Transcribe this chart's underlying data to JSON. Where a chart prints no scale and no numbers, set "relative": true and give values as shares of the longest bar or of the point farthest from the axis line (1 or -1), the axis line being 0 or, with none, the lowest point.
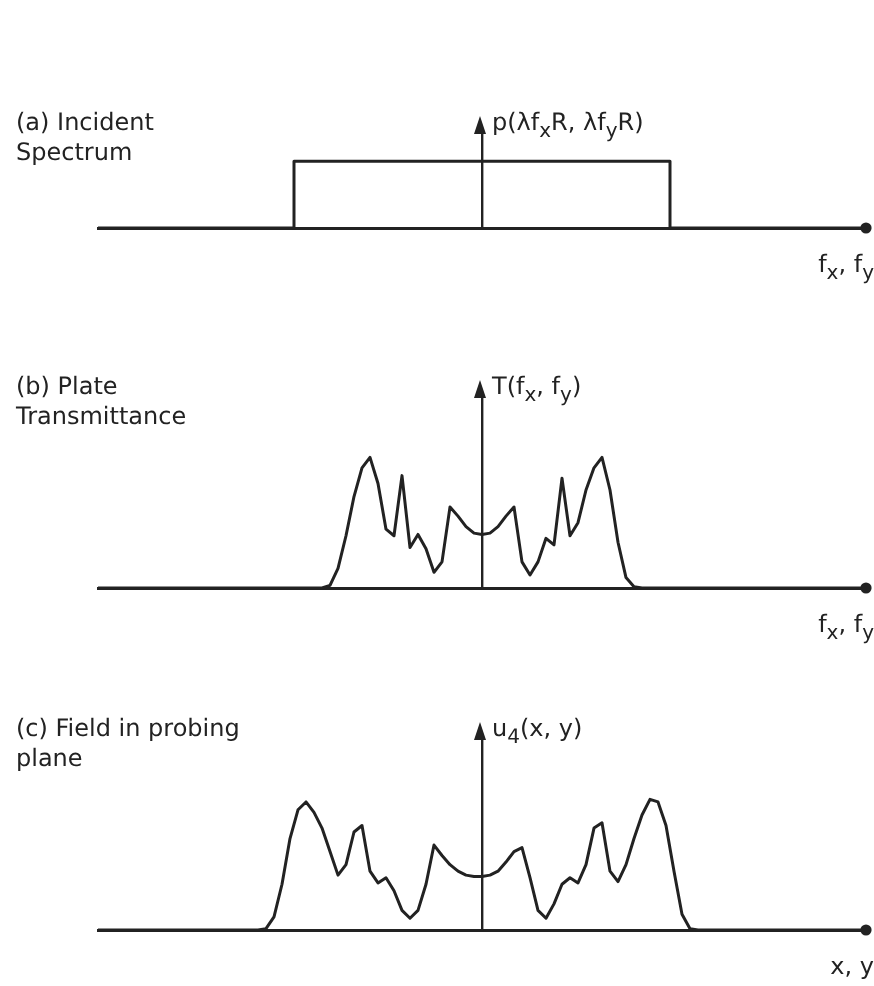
{
  "chart_data": [
    {
      "type": "step",
      "title": "(a) Incident Spectrum",
      "ylabel": "p(λf$_{x}$R, λf$_{y}$R)",
      "xlabel": "f$_{x}$, f$_{y}$",
      "relative": true,
      "color": "#222222",
      "categories": [
        null,
        null,
        null,
        null,
        null,
        null,
        null,
        null,
        null,
        null,
        null,
        null,
        null,
        null,
        null,
        null,
        null,
        null,
        null,
        null,
        null,
        null,
        null,
        null,
        null,
        null,
        null,
        null,
        null,
        null,
        null,
        null,
        null,
        null,
        null,
        null,
        null,
        null,
        null,
        null,
        null,
        null,
        null,
        null,
        null,
        null,
        null,
        null,
        null,
        null,
        null,
        null,
        null,
        null,
        null,
        null,
        null,
        null,
        null,
        null,
        null,
        null,
        null,
        null,
        null,
        null,
        null,
        null,
        null,
        null,
        null,
        null,
        null,
        null,
        null,
        null,
        null,
        null,
        null,
        null,
        null,
        null,
        null,
        null,
        null,
        null,
        null,
        null,
        null,
        null,
        null,
        null,
        null,
        null,
        null,
        null,
        null
      ],
      "values": [
        0,
        0,
        0,
        0,
        0,
        0,
        0,
        0,
        0,
        0,
        0,
        0,
        0,
        0,
        0,
        0,
        0,
        0,
        0,
        0,
        0,
        0,
        0,
        0,
        0,
        1,
        1,
        1,
        1,
        1,
        1,
        1,
        1,
        1,
        1,
        1,
        1,
        1,
        1,
        1,
        1,
        1,
        1,
        1,
        1,
        1,
        1,
        1,
        1,
        1,
        1,
        1,
        1,
        1,
        1,
        1,
        1,
        1,
        1,
        1,
        1,
        1,
        1,
        1,
        1,
        1,
        1,
        1,
        1,
        1,
        1,
        1,
        0,
        0,
        0,
        0,
        0,
        0,
        0,
        0,
        0,
        0,
        0,
        0,
        0,
        0,
        0,
        0,
        0,
        0,
        0,
        0,
        0,
        0,
        0,
        0,
        0
      ]
    },
    {
      "type": "line",
      "title": "(b) Plate Transmittance",
      "ylabel": "T(f$_{x}$, f$_{y}$)",
      "xlabel": "f$_{x}$, f$_{y}$",
      "relative": true,
      "color": "#222222",
      "categories": [
        null,
        null,
        null,
        null,
        null,
        null,
        null,
        null,
        null,
        null,
        null,
        null,
        null,
        null,
        null,
        null,
        null,
        null,
        null,
        null,
        null,
        null,
        null,
        null,
        null,
        null,
        null,
        null,
        null,
        null,
        null,
        null,
        null,
        null,
        null,
        null,
        null,
        null,
        null,
        null,
        null,
        null,
        null,
        null,
        null,
        null,
        null,
        null,
        null,
        null,
        null,
        null,
        null,
        null,
        null,
        null,
        null,
        null,
        null,
        null,
        null,
        null,
        null,
        null,
        null,
        null,
        null,
        null,
        null,
        null,
        null,
        null,
        null,
        null,
        null,
        null,
        null,
        null,
        null,
        null,
        null,
        null,
        null,
        null,
        null,
        null,
        null,
        null,
        null,
        null,
        null,
        null,
        null,
        null,
        null,
        null,
        null
      ],
      "values": [
        0,
        0,
        0,
        0,
        0,
        0,
        0,
        0,
        0,
        0,
        0,
        0,
        0,
        0,
        0,
        0,
        0,
        0,
        0,
        0,
        0,
        0,
        0,
        0,
        0,
        0,
        0,
        0,
        0,
        0.02,
        0.15,
        0.4,
        0.7,
        0.92,
        1,
        0.8,
        0.45,
        0.4,
        0.86,
        0.31,
        0.41,
        0.3,
        0.12,
        0.2,
        0.62,
        0.55,
        0.47,
        0.42,
        0.41,
        0.42,
        0.47,
        0.55,
        0.62,
        0.2,
        0.1,
        0.2,
        0.38,
        0.33,
        0.84,
        0.4,
        0.5,
        0.75,
        0.92,
        1,
        0.75,
        0.35,
        0.08,
        0.01,
        0,
        0,
        0,
        0,
        0,
        0,
        0,
        0,
        0,
        0,
        0,
        0,
        0,
        0,
        0,
        0,
        0,
        0,
        0,
        0,
        0,
        0,
        0,
        0,
        0,
        0,
        0,
        0,
        0
      ]
    },
    {
      "type": "line",
      "title": "(c) Field in probing plane",
      "ylabel": "u$_{4}$(x, y)",
      "xlabel": "x, y",
      "relative": true,
      "color": "#222222",
      "categories": [
        null,
        null,
        null,
        null,
        null,
        null,
        null,
        null,
        null,
        null,
        null,
        null,
        null,
        null,
        null,
        null,
        null,
        null,
        null,
        null,
        null,
        null,
        null,
        null,
        null,
        null,
        null,
        null,
        null,
        null,
        null,
        null,
        null,
        null,
        null,
        null,
        null,
        null,
        null,
        null,
        null,
        null,
        null,
        null,
        null,
        null,
        null,
        null,
        null,
        null,
        null,
        null,
        null,
        null,
        null,
        null,
        null,
        null,
        null,
        null,
        null,
        null,
        null,
        null,
        null,
        null,
        null,
        null,
        null,
        null,
        null,
        null,
        null,
        null,
        null,
        null,
        null,
        null,
        null,
        null,
        null,
        null,
        null,
        null,
        null,
        null,
        null,
        null,
        null,
        null,
        null,
        null,
        null,
        null,
        null,
        null,
        null
      ],
      "values": [
        0,
        0,
        0,
        0,
        0,
        0,
        0,
        0,
        0,
        0,
        0,
        0,
        0,
        0,
        0,
        0,
        0,
        0,
        0,
        0,
        0,
        0.01,
        0.1,
        0.35,
        0.7,
        0.92,
        0.98,
        0.9,
        0.78,
        0.6,
        0.42,
        0.5,
        0.75,
        0.8,
        0.45,
        0.36,
        0.4,
        0.3,
        0.15,
        0.09,
        0.15,
        0.35,
        0.65,
        0.57,
        0.5,
        0.45,
        0.42,
        0.41,
        0.41,
        0.42,
        0.45,
        0.52,
        0.6,
        0.63,
        0.4,
        0.15,
        0.09,
        0.2,
        0.35,
        0.4,
        0.36,
        0.5,
        0.78,
        0.82,
        0.45,
        0.37,
        0.5,
        0.7,
        0.88,
        1,
        0.98,
        0.8,
        0.45,
        0.12,
        0.01,
        0,
        0,
        0,
        0,
        0,
        0,
        0,
        0,
        0,
        0,
        0,
        0,
        0,
        0,
        0,
        0,
        0,
        0,
        0,
        0,
        0,
        0
      ]
    }
  ]
}
